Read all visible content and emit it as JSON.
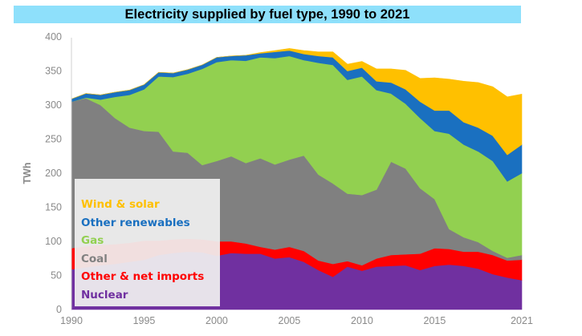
{
  "title": "Electricity supplied by fuel type, 1990 to 2021",
  "chart_data": {
    "type": "area",
    "stacked": true,
    "title": "Electricity supplied by fuel type, 1990 to 2021",
    "xlabel": "",
    "ylabel": "TWh",
    "xlim": [
      1990,
      2021
    ],
    "ylim": [
      0,
      400
    ],
    "x": [
      1990,
      1991,
      1992,
      1993,
      1994,
      1995,
      1996,
      1997,
      1998,
      1999,
      2000,
      2001,
      2002,
      2003,
      2004,
      2005,
      2006,
      2007,
      2008,
      2009,
      2010,
      2011,
      2012,
      2013,
      2014,
      2015,
      2016,
      2017,
      2018,
      2019,
      2020,
      2021
    ],
    "x_ticks": [
      "1990",
      "1995",
      "2000",
      "2005",
      "2010",
      "2015",
      "2021"
    ],
    "x_tick_values": [
      1990,
      1995,
      2000,
      2005,
      2010,
      2015,
      2021
    ],
    "y_ticks": [
      "0",
      "50",
      "100",
      "150",
      "200",
      "250",
      "300",
      "350",
      "400"
    ],
    "y_tick_values": [
      0,
      50,
      100,
      150,
      200,
      250,
      300,
      350,
      400
    ],
    "grid": false,
    "legend_position": "bottom-left",
    "series": [
      {
        "name": "Nuclear",
        "color": "#7030a0",
        "values": [
          59,
          62,
          65,
          67,
          70,
          73,
          80,
          83,
          85,
          84,
          79,
          83,
          82,
          82,
          75,
          77,
          70,
          58,
          48,
          63,
          57,
          63,
          64,
          65,
          58,
          64,
          66,
          64,
          60,
          52,
          47,
          43
        ]
      },
      {
        "name": "Other & net imports",
        "color": "#ff0000",
        "values": [
          31,
          31,
          30,
          29,
          28,
          28,
          21,
          20,
          19,
          19,
          21,
          17,
          15,
          10,
          13,
          15,
          16,
          14,
          19,
          8,
          8,
          12,
          16,
          16,
          24,
          26,
          23,
          21,
          25,
          28,
          25,
          30
        ]
      },
      {
        "name": "Coal",
        "color": "#808080",
        "values": [
          215,
          217,
          205,
          185,
          169,
          161,
          160,
          129,
          126,
          109,
          118,
          125,
          118,
          130,
          125,
          128,
          140,
          126,
          118,
          99,
          103,
          101,
          137,
          126,
          96,
          72,
          29,
          21,
          14,
          6,
          4,
          7
        ]
      },
      {
        "name": "Gas",
        "color": "#92d050",
        "values": [
          0,
          1,
          8,
          31,
          48,
          61,
          81,
          109,
          116,
          141,
          145,
          141,
          150,
          148,
          156,
          152,
          140,
          164,
          174,
          167,
          174,
          146,
          100,
          95,
          103,
          100,
          140,
          136,
          133,
          132,
          112,
          120
        ]
      },
      {
        "name": "Other renewables",
        "color": "#1a70c0",
        "values": [
          4,
          6,
          7,
          7,
          7,
          7,
          6,
          6,
          6,
          6,
          7,
          6,
          8,
          6,
          9,
          8,
          9,
          10,
          11,
          13,
          13,
          13,
          16,
          21,
          24,
          30,
          34,
          33,
          35,
          37,
          39,
          42
        ]
      },
      {
        "name": "Wind & solar",
        "color": "#ffc000",
        "values": [
          0,
          0,
          0,
          0,
          0,
          0,
          0,
          0,
          0,
          0,
          0,
          0,
          0,
          1,
          2,
          3,
          5,
          6,
          8,
          10,
          9,
          18,
          20,
          28,
          34,
          48,
          46,
          60,
          66,
          72,
          85,
          74
        ]
      }
    ]
  },
  "legend": [
    {
      "label": "Wind & solar",
      "color": "#ffc000"
    },
    {
      "label": "Other renewables",
      "color": "#1a70c0"
    },
    {
      "label": "Gas",
      "color": "#92d050"
    },
    {
      "label": "Coal",
      "color": "#808080"
    },
    {
      "label": "Other & net imports",
      "color": "#ff0000"
    },
    {
      "label": "Nuclear",
      "color": "#7030a0"
    }
  ]
}
